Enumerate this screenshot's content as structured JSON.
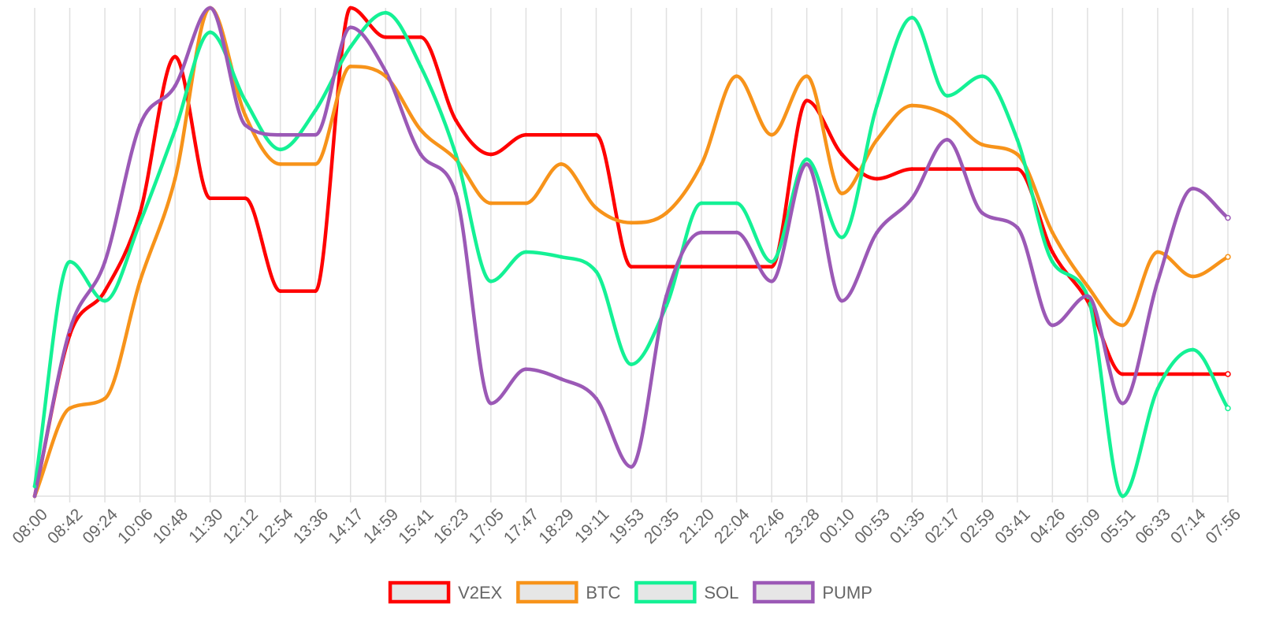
{
  "chart_data": {
    "type": "line",
    "x": [
      "08:00",
      "08:42",
      "09:24",
      "10:06",
      "10:48",
      "11:30",
      "12:12",
      "12:54",
      "13:36",
      "14:17",
      "14:59",
      "15:41",
      "16:23",
      "17:05",
      "17:47",
      "18:29",
      "19:11",
      "19:53",
      "20:35",
      "21:20",
      "22:04",
      "22:46",
      "23:28",
      "00:10",
      "00:53",
      "01:35",
      "02:17",
      "02:59",
      "03:41",
      "04:26",
      "05:09",
      "05:51",
      "06:33",
      "07:14",
      "07:56"
    ],
    "ylim": [
      0,
      100
    ],
    "y_axis_labels": false,
    "grid": "vertical",
    "legend": "bottom",
    "series": [
      {
        "name": "V2EX",
        "color": "#ff0000",
        "values": [
          0,
          33,
          42,
          58,
          90,
          61,
          61,
          42,
          42,
          100,
          94,
          94,
          77,
          70,
          74,
          74,
          74,
          47,
          47,
          47,
          47,
          47,
          81,
          70,
          65,
          67,
          67,
          67,
          67,
          50,
          40,
          25,
          25,
          25,
          25
        ]
      },
      {
        "name": "BTC",
        "color": "#f7931a",
        "values": [
          0,
          18,
          20,
          44,
          65,
          100,
          78,
          68,
          68,
          88,
          86,
          75,
          69,
          60,
          60,
          68,
          59,
          56,
          58,
          68,
          86,
          74,
          86,
          62,
          73,
          80,
          78,
          72,
          70,
          54,
          43,
          35,
          50,
          45,
          49
        ]
      },
      {
        "name": "SOL",
        "color": "#14f195",
        "values": [
          2,
          48,
          40,
          56,
          75,
          95,
          81,
          71,
          79,
          92,
          99,
          88,
          70,
          44,
          50,
          49,
          46,
          27,
          39,
          60,
          60,
          48,
          69,
          53,
          80,
          98,
          82,
          86,
          73,
          48,
          41,
          0,
          22,
          30,
          18
        ]
      },
      {
        "name": "PUMP",
        "color": "#9b59b6",
        "values": [
          0,
          34,
          48,
          76,
          84,
          100,
          76,
          74,
          74,
          96,
          87,
          70,
          62,
          19,
          26,
          24,
          20,
          6,
          41,
          54,
          54,
          44,
          68,
          40,
          54,
          61,
          73,
          58,
          55,
          35,
          41,
          19,
          44,
          63,
          57
        ]
      }
    ]
  }
}
